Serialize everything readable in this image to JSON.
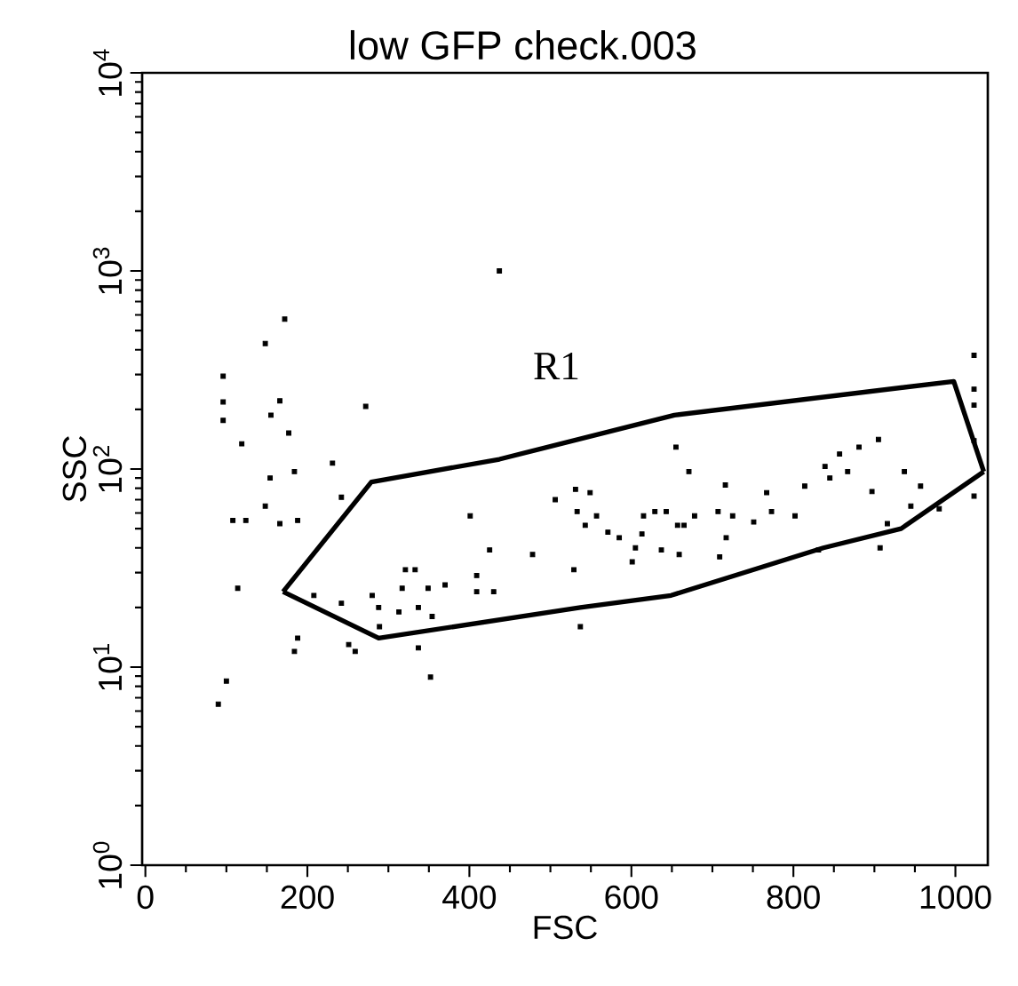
{
  "chart_data": {
    "type": "scatter",
    "title": "low GFP check.003",
    "xlabel": "FSC",
    "ylabel": "SSC",
    "log": "y",
    "xlim": [
      -4,
      1040
    ],
    "ylim": [
      1,
      10000
    ],
    "xticks": [
      0,
      200,
      400,
      600,
      800,
      1000
    ],
    "yticks": [
      {
        "value": 1,
        "label": "10$^{0}$"
      },
      {
        "value": 10,
        "label": "10$^{1}$"
      },
      {
        "value": 100,
        "label": "10$^{2}$"
      },
      {
        "value": 1000,
        "label": "10$^{3}$"
      },
      {
        "value": 10000,
        "label": "10$^{4}$"
      }
    ],
    "grid": false,
    "annotations": [
      "R1"
    ],
    "series": [
      {
        "color": "#000000",
        "marker": "square",
        "x": [
          437,
          172,
          148,
          96,
          96,
          96,
          166,
          155,
          177,
          119,
          272,
          231,
          154,
          184,
          148,
          108,
          124,
          188,
          166,
          242,
          114,
          208,
          188,
          184,
          251,
          259,
          100,
          90,
          242,
          280,
          288,
          289,
          313,
          317,
          321,
          333,
          337,
          349,
          354,
          337,
          352,
          370,
          401,
          409,
          409,
          425,
          430,
          478,
          506,
          529,
          531,
          537,
          533,
          543,
          549,
          557,
          571,
          585,
          601,
          605,
          613,
          615,
          629,
          637,
          643,
          655,
          657,
          659,
          665,
          671,
          678,
          707,
          709,
          716,
          717,
          725,
          751,
          767,
          773,
          802,
          814,
          831,
          839,
          845,
          857,
          867,
          881,
          897,
          905,
          907,
          916,
          937,
          945,
          957,
          980,
          1023,
          1023,
          1023,
          1023,
          1023
        ],
        "values": [
          1000,
          571,
          430,
          294,
          218,
          176,
          221,
          187,
          152,
          134,
          207,
          107,
          90,
          97,
          65,
          55,
          55,
          55,
          53,
          72,
          25,
          23,
          14,
          12,
          13,
          12,
          8.5,
          6.5,
          21,
          23,
          20,
          16,
          19,
          25,
          31,
          31,
          20,
          25,
          18,
          12.5,
          8.9,
          26,
          58,
          29,
          24,
          39,
          24,
          37,
          70,
          31,
          79,
          16,
          61,
          52,
          76,
          58,
          48,
          45,
          34,
          40,
          47,
          58,
          61,
          39,
          61,
          129,
          52,
          37,
          52,
          97,
          58,
          61,
          36,
          83,
          45,
          58,
          54,
          76,
          61,
          58,
          82,
          39,
          103,
          90,
          119,
          97,
          129,
          77,
          141,
          40,
          53,
          97,
          65,
          82,
          63,
          375,
          253,
          210,
          139,
          73
        ]
      },
      {
        "type": "line",
        "color": "#000000",
        "marker": "none",
        "line_style": "solid",
        "x": [
          170,
          279,
          437,
          653,
          998,
          1035
        ],
        "values": [
          24,
          86,
          112,
          187,
          277,
          97
        ]
      },
      {
        "type": "line",
        "color": "#000000",
        "marker": "none",
        "line_style": "solid",
        "x": [
          170,
          288,
          537,
          649,
          837,
          933,
          1035
        ],
        "values": [
          24,
          14,
          20,
          23,
          40,
          50,
          97
        ]
      }
    ]
  }
}
